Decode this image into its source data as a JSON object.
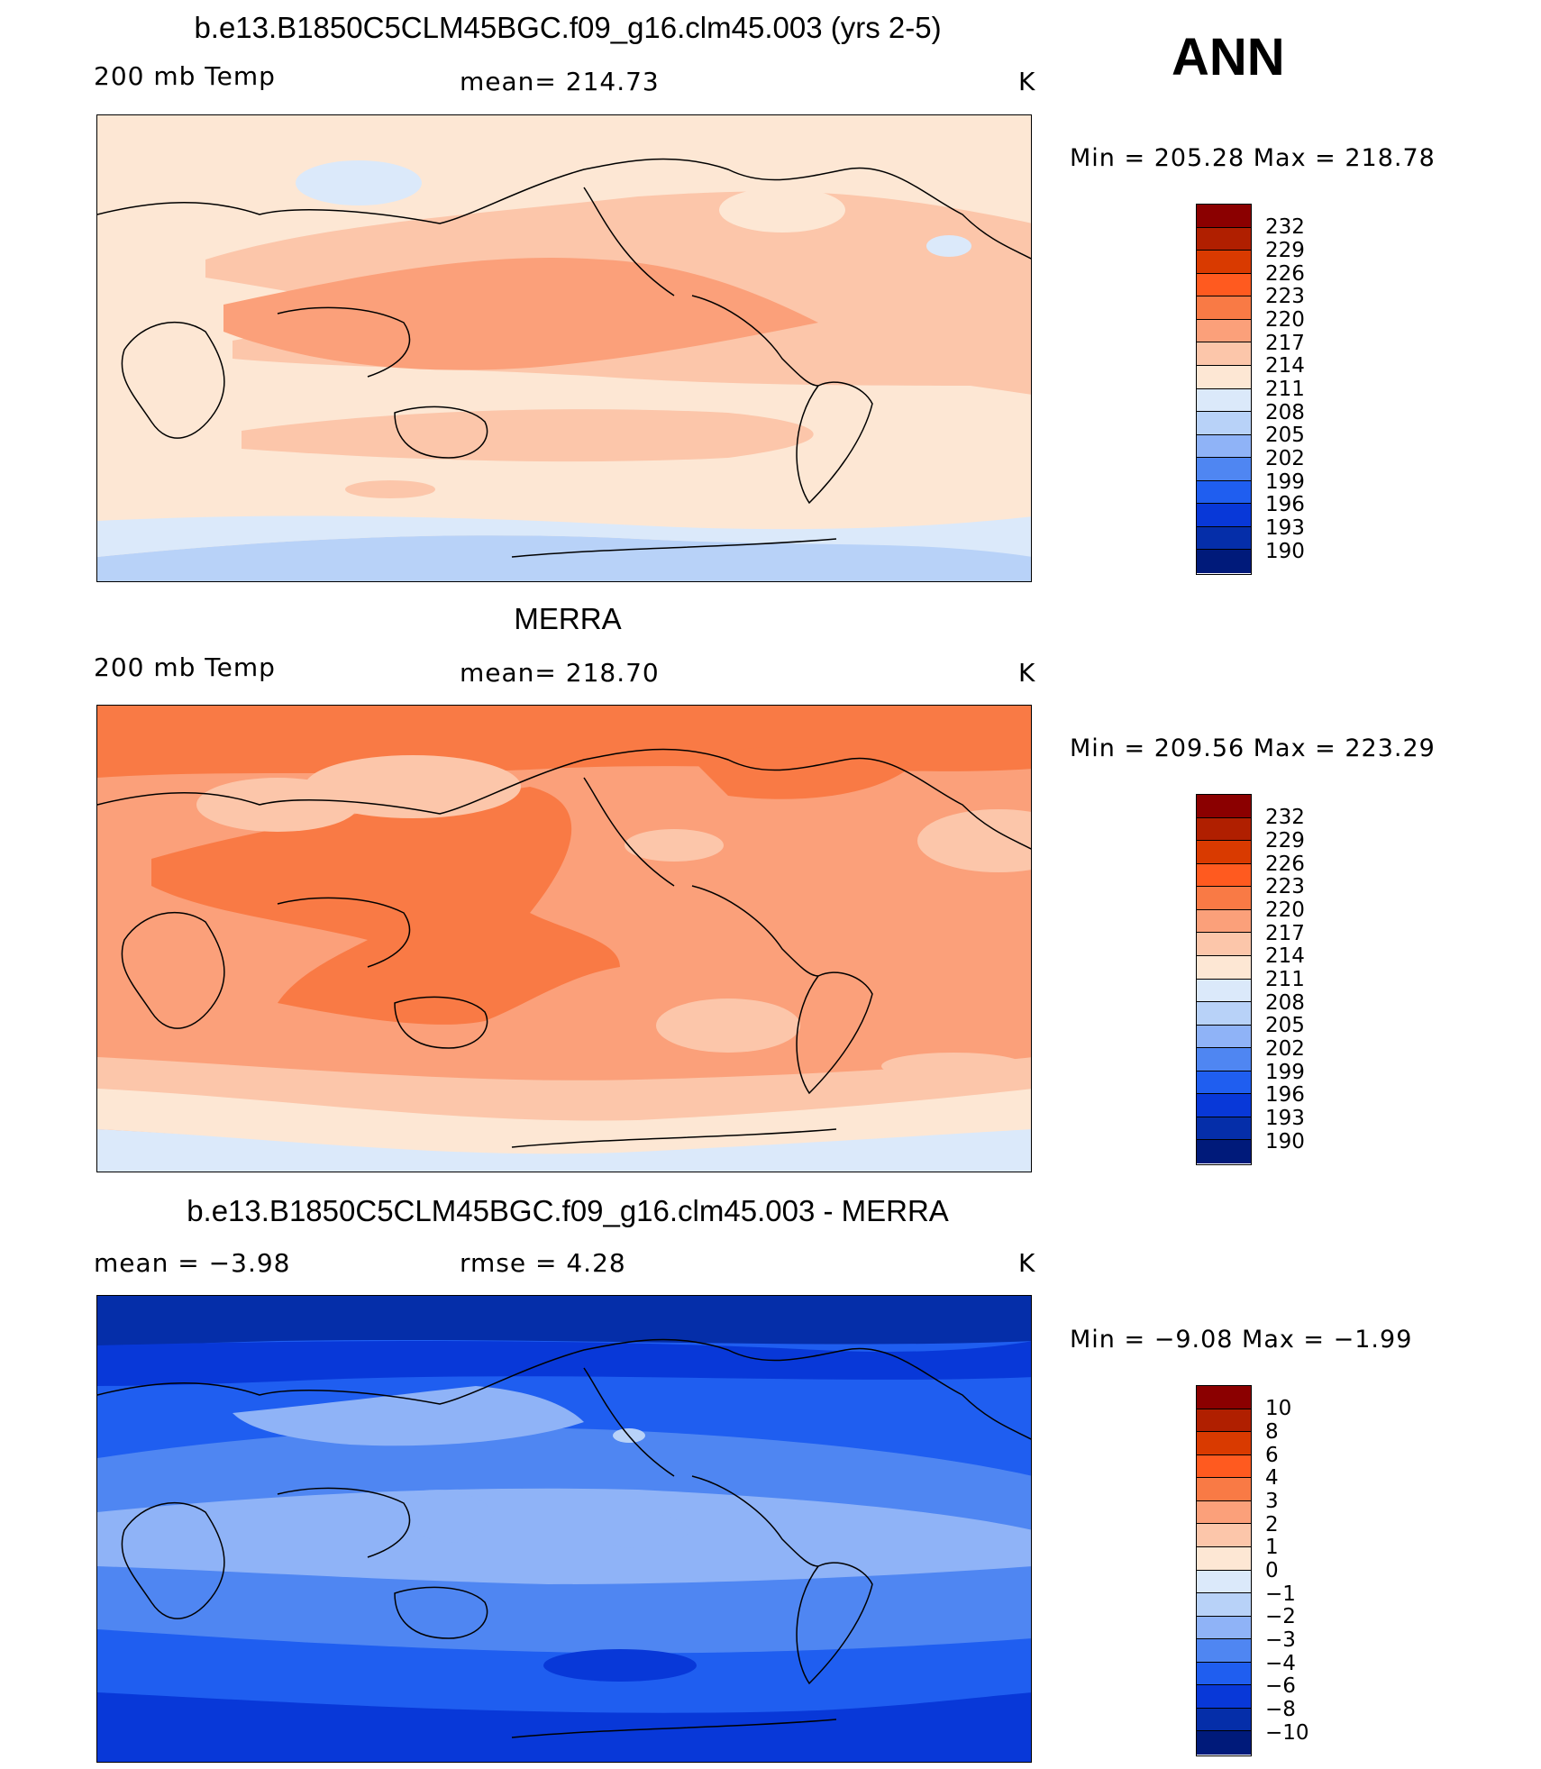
{
  "header": {
    "season": "ANN"
  },
  "panels": [
    {
      "title": "b.e13.B1850C5CLM45BGC.f09_g16.clm45.003 (yrs 2-5)",
      "left_label": "200 mb Temp",
      "center_label": "mean= 214.73",
      "units": "K",
      "minmax": "Min = 205.28 Max = 218.78",
      "colorbar_levels": [
        "232",
        "229",
        "226",
        "223",
        "220",
        "217",
        "214",
        "211",
        "208",
        "205",
        "202",
        "199",
        "196",
        "193",
        "190"
      ],
      "fill_level_max": 218.78,
      "fill_level_min": 205.28
    },
    {
      "title": "MERRA",
      "left_label": "200 mb Temp",
      "center_label": "mean= 218.70",
      "units": "K",
      "minmax": "Min = 209.56 Max = 223.29",
      "colorbar_levels": [
        "232",
        "229",
        "226",
        "223",
        "220",
        "217",
        "214",
        "211",
        "208",
        "205",
        "202",
        "199",
        "196",
        "193",
        "190"
      ],
      "fill_level_max": 223.29,
      "fill_level_min": 209.56
    },
    {
      "title": "b.e13.B1850C5CLM45BGC.f09_g16.clm45.003 - MERRA",
      "left_label": "mean =   −3.98",
      "center_label": "rmse =    4.28",
      "units": "K",
      "minmax": "Min =  −9.08 Max =  −1.99",
      "colorbar_levels": [
        "10",
        "8",
        "6",
        "4",
        "3",
        "2",
        "1",
        "0",
        "−1",
        "−2",
        "−3",
        "−4",
        "−6",
        "−8",
        "−10"
      ],
      "fill_level_max": -1.99,
      "fill_level_min": -9.08
    }
  ],
  "colors": {
    "colorbar": [
      "#8b0000",
      "#b01f00",
      "#d93a00",
      "#ff5a1f",
      "#f97a45",
      "#fba07a",
      "#fcc6aa",
      "#fde7d4",
      "#dbe9fa",
      "#b8d2f8",
      "#8fb3f7",
      "#4f86f2",
      "#1f5ef0",
      "#0838d8",
      "#052ea9",
      "#001a7a"
    ],
    "coast": "#000000"
  }
}
